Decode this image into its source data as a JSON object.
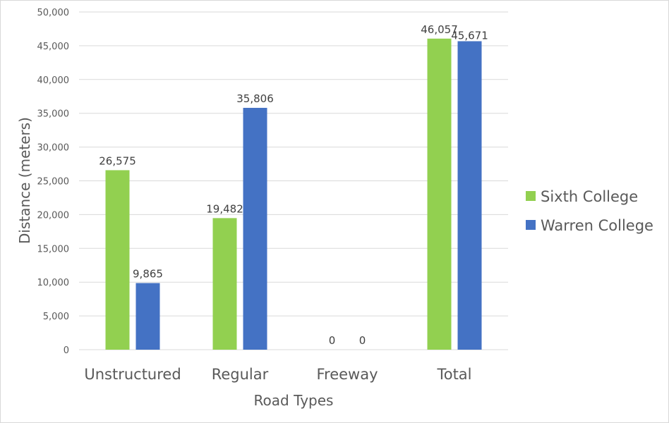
{
  "chart_data": {
    "type": "bar",
    "title": "",
    "xlabel": "Road Types",
    "ylabel": "Distance (meters)",
    "ylim": [
      0,
      50000
    ],
    "yticks": [
      0,
      5000,
      10000,
      15000,
      20000,
      25000,
      30000,
      35000,
      40000,
      45000,
      50000
    ],
    "ytick_labels": [
      "0",
      "5,000",
      "10,000",
      "15,000",
      "20,000",
      "25,000",
      "30,000",
      "35,000",
      "40,000",
      "45,000",
      "50,000"
    ],
    "grid": true,
    "legend_position": "right",
    "categories": [
      "Unstructured",
      "Regular",
      "Freeway",
      "Total"
    ],
    "series": [
      {
        "name": "Sixth College",
        "color": "#92D050",
        "values": [
          26575,
          19482,
          0,
          46057
        ],
        "labels": [
          "26,575",
          "19,482",
          "0",
          "46,057"
        ]
      },
      {
        "name": "Warren College",
        "color": "#4472C4",
        "values": [
          9865,
          35806,
          0,
          45671
        ],
        "labels": [
          "9,865",
          "35,806",
          "0",
          "45,671"
        ]
      }
    ]
  }
}
